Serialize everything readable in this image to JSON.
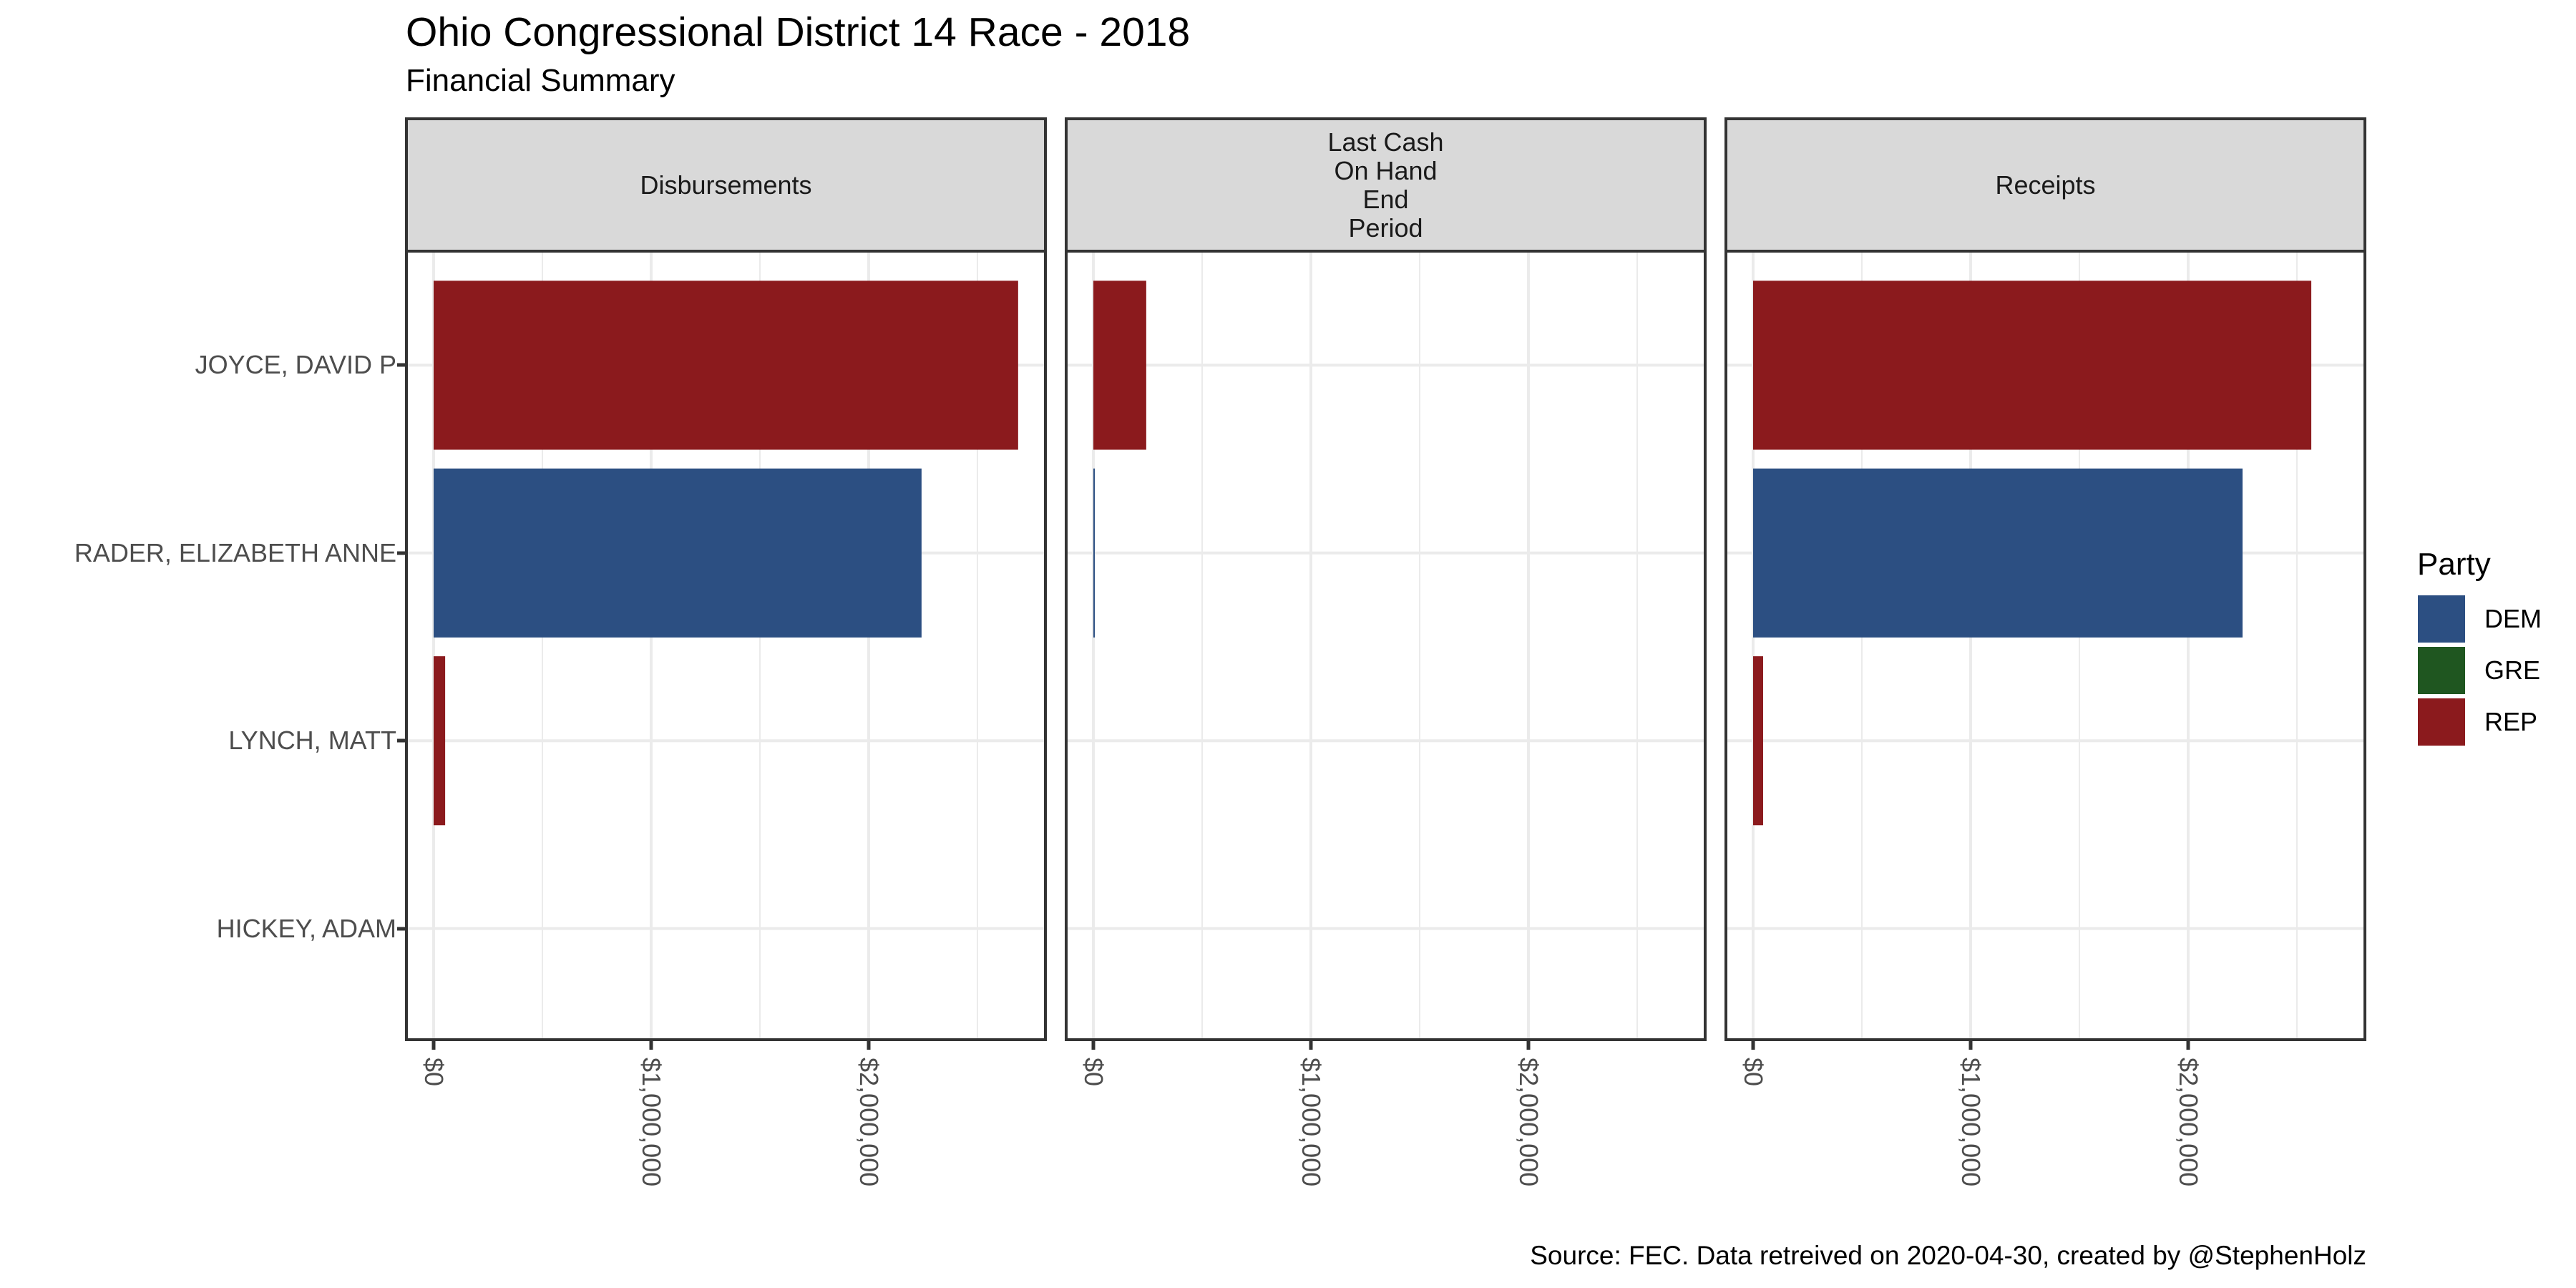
{
  "chart_data": {
    "type": "bar",
    "orientation": "horizontal",
    "title": "Ohio Congressional District 14 Race - 2018",
    "subtitle": "Financial Summary",
    "caption": "Source: FEC. Data retreived on 2020-04-30, created by @StephenHolz",
    "xlabel": "",
    "ylabel": "",
    "grid": true,
    "xlim": [
      0,
      2800000
    ],
    "x_ticks": [
      0,
      1000000,
      2000000
    ],
    "x_tick_labels": [
      "$0",
      "$1,000,000",
      "$2,000,000"
    ],
    "categories": [
      "JOYCE, DAVID P",
      "RADER, ELIZABETH ANNE",
      "LYNCH, MATT",
      "HICKEY, ADAM"
    ],
    "category_party": [
      "REP",
      "DEM",
      "REP",
      "GRE"
    ],
    "facets": [
      {
        "label": "Disbursements",
        "values": [
          2687000,
          2243000,
          53000,
          0
        ]
      },
      {
        "label": "Last Cash\nOn Hand\nEnd\nPeriod",
        "values": [
          243000,
          6000,
          0,
          0
        ]
      },
      {
        "label": "Receipts",
        "values": [
          2566000,
          2250000,
          46000,
          0
        ]
      }
    ],
    "legend": {
      "title": "Party",
      "position": "right",
      "entries": [
        {
          "label": "DEM",
          "color": "#2c4f82"
        },
        {
          "label": "GRE",
          "color": "#1f5620"
        },
        {
          "label": "REP",
          "color": "#8b1a1d"
        }
      ]
    }
  }
}
